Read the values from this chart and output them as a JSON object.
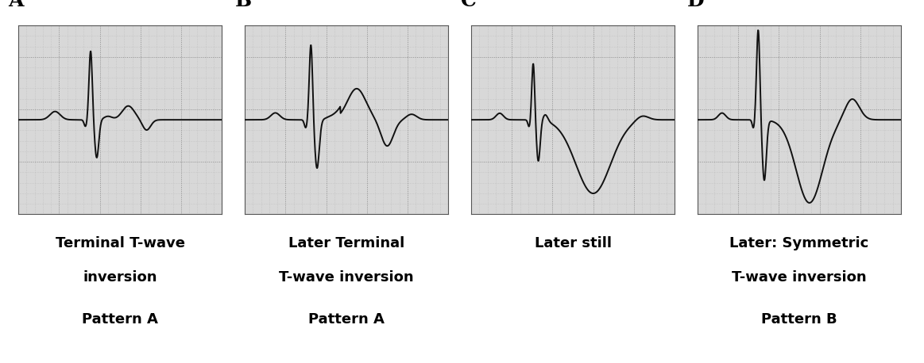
{
  "panels": [
    "A",
    "B",
    "C",
    "D"
  ],
  "label1": [
    "Terminal T-wave",
    "Later Terminal",
    "Later still",
    "Later: Symmetric"
  ],
  "label2": [
    "inversion",
    "T-wave inversion",
    "",
    "T-wave inversion"
  ],
  "label3": [
    "Pattern A",
    "Pattern A",
    "",
    "Pattern B"
  ],
  "bg_color": "#ffffff",
  "ecg_color": "#111111",
  "grid_minor_color": "#aaaaaa",
  "grid_major_color": "#888888",
  "box_bg": "#d8d8d8",
  "label_fontsize": 13,
  "pattern_fontsize": 13
}
